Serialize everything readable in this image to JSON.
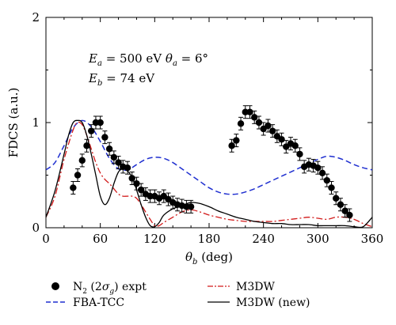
{
  "chart_data": {
    "type": "line",
    "xlabel_symbol": "θ",
    "xlabel_sub": "b",
    "xlabel_unit": "(deg)",
    "ylabel": "FDCS (a.u.)",
    "xlim": [
      0,
      360
    ],
    "ylim": [
      0,
      2
    ],
    "xticks": [
      0,
      60,
      120,
      180,
      240,
      300,
      360
    ],
    "yticks": [
      0,
      1,
      2
    ],
    "grid": false,
    "legend_position": "bottom",
    "annotations": {
      "line1": "E_a = 500 eV θ_a = 6°",
      "line2": "E_b = 74 eV",
      "ea_var": "E",
      "ea_sub": "a",
      "ea_value": " = 500 eV ",
      "theta_var": "θ",
      "theta_sub": "a",
      "theta_value": " = 6°",
      "eb_var": "E",
      "eb_sub": "b",
      "eb_value": " = 74 eV"
    },
    "series": [
      {
        "name": "N2 (2σg) expt",
        "name_main": "N",
        "name_sub": "2",
        "name_paren_open": " (2",
        "name_sigma": "σ",
        "name_sigma_sub": "g",
        "name_tail": ") expt",
        "kind": "points",
        "color": "#000000",
        "x": [
          30,
          35,
          40,
          45,
          50,
          55,
          60,
          65,
          70,
          75,
          80,
          85,
          90,
          95,
          100,
          105,
          110,
          115,
          120,
          125,
          130,
          135,
          140,
          145,
          150,
          155,
          160,
          205,
          210,
          215,
          220,
          225,
          230,
          235,
          240,
          245,
          250,
          255,
          260,
          265,
          270,
          275,
          280,
          285,
          290,
          295,
          300,
          305,
          310,
          315,
          320,
          325,
          330,
          335
        ],
        "y": [
          0.38,
          0.5,
          0.64,
          0.78,
          0.92,
          1.0,
          1.0,
          0.86,
          0.75,
          0.67,
          0.62,
          0.58,
          0.57,
          0.47,
          0.42,
          0.36,
          0.32,
          0.3,
          0.3,
          0.28,
          0.3,
          0.27,
          0.24,
          0.22,
          0.21,
          0.2,
          0.2,
          0.78,
          0.83,
          0.99,
          1.1,
          1.1,
          1.05,
          1.0,
          0.94,
          0.97,
          0.92,
          0.87,
          0.84,
          0.77,
          0.8,
          0.78,
          0.7,
          0.58,
          0.6,
          0.59,
          0.57,
          0.52,
          0.45,
          0.38,
          0.28,
          0.22,
          0.16,
          0.12
        ]
      },
      {
        "name": "FBA-TCC",
        "kind": "line",
        "style": "dashed",
        "color": "#1f2fd0",
        "x": [
          0,
          10,
          20,
          30,
          40,
          50,
          60,
          70,
          80,
          90,
          100,
          110,
          120,
          130,
          140,
          150,
          160,
          170,
          180,
          190,
          200,
          210,
          220,
          230,
          240,
          250,
          260,
          270,
          280,
          290,
          300,
          310,
          320,
          330,
          340,
          350,
          360
        ],
        "y": [
          0.55,
          0.62,
          0.78,
          0.95,
          1.02,
          0.96,
          0.82,
          0.66,
          0.56,
          0.55,
          0.6,
          0.65,
          0.67,
          0.66,
          0.62,
          0.56,
          0.5,
          0.44,
          0.38,
          0.34,
          0.32,
          0.32,
          0.34,
          0.37,
          0.41,
          0.45,
          0.49,
          0.53,
          0.57,
          0.61,
          0.65,
          0.68,
          0.67,
          0.64,
          0.6,
          0.57,
          0.55
        ]
      },
      {
        "name": "M3DW",
        "kind": "line",
        "style": "dashdot",
        "color": "#d21a1a",
        "x": [
          0,
          10,
          20,
          30,
          35,
          40,
          45,
          50,
          55,
          60,
          65,
          70,
          75,
          80,
          85,
          90,
          95,
          100,
          105,
          110,
          115,
          120,
          125,
          130,
          140,
          150,
          160,
          170,
          180,
          190,
          200,
          210,
          220,
          230,
          240,
          250,
          260,
          270,
          280,
          290,
          300,
          310,
          320,
          330,
          340,
          350,
          360
        ],
        "y": [
          0.1,
          0.3,
          0.65,
          0.93,
          1.0,
          0.98,
          0.88,
          0.75,
          0.62,
          0.52,
          0.46,
          0.42,
          0.37,
          0.32,
          0.3,
          0.3,
          0.3,
          0.28,
          0.22,
          0.15,
          0.08,
          0.02,
          0.02,
          0.05,
          0.1,
          0.15,
          0.17,
          0.15,
          0.12,
          0.1,
          0.08,
          0.07,
          0.06,
          0.06,
          0.06,
          0.06,
          0.07,
          0.08,
          0.09,
          0.1,
          0.09,
          0.08,
          0.1,
          0.1,
          0.08,
          0.04,
          0.01
        ]
      },
      {
        "name": "M3DW (new)",
        "kind": "line",
        "style": "solid",
        "color": "#000000",
        "x": [
          0,
          10,
          20,
          25,
          30,
          35,
          40,
          45,
          50,
          55,
          60,
          65,
          70,
          75,
          80,
          85,
          90,
          95,
          100,
          105,
          110,
          115,
          120,
          125,
          130,
          140,
          150,
          160,
          170,
          180,
          190,
          200,
          210,
          220,
          230,
          240,
          250,
          260,
          270,
          280,
          290,
          300,
          310,
          320,
          330,
          340,
          350,
          360
        ],
        "y": [
          0.1,
          0.35,
          0.7,
          0.88,
          1.0,
          1.02,
          1.0,
          0.88,
          0.7,
          0.5,
          0.3,
          0.22,
          0.28,
          0.42,
          0.53,
          0.56,
          0.54,
          0.48,
          0.36,
          0.22,
          0.1,
          0.02,
          0.01,
          0.05,
          0.12,
          0.18,
          0.21,
          0.24,
          0.23,
          0.2,
          0.16,
          0.13,
          0.1,
          0.08,
          0.06,
          0.05,
          0.04,
          0.04,
          0.03,
          0.03,
          0.03,
          0.02,
          0.02,
          0.02,
          0.02,
          0.01,
          0.01,
          0.1
        ]
      }
    ]
  }
}
